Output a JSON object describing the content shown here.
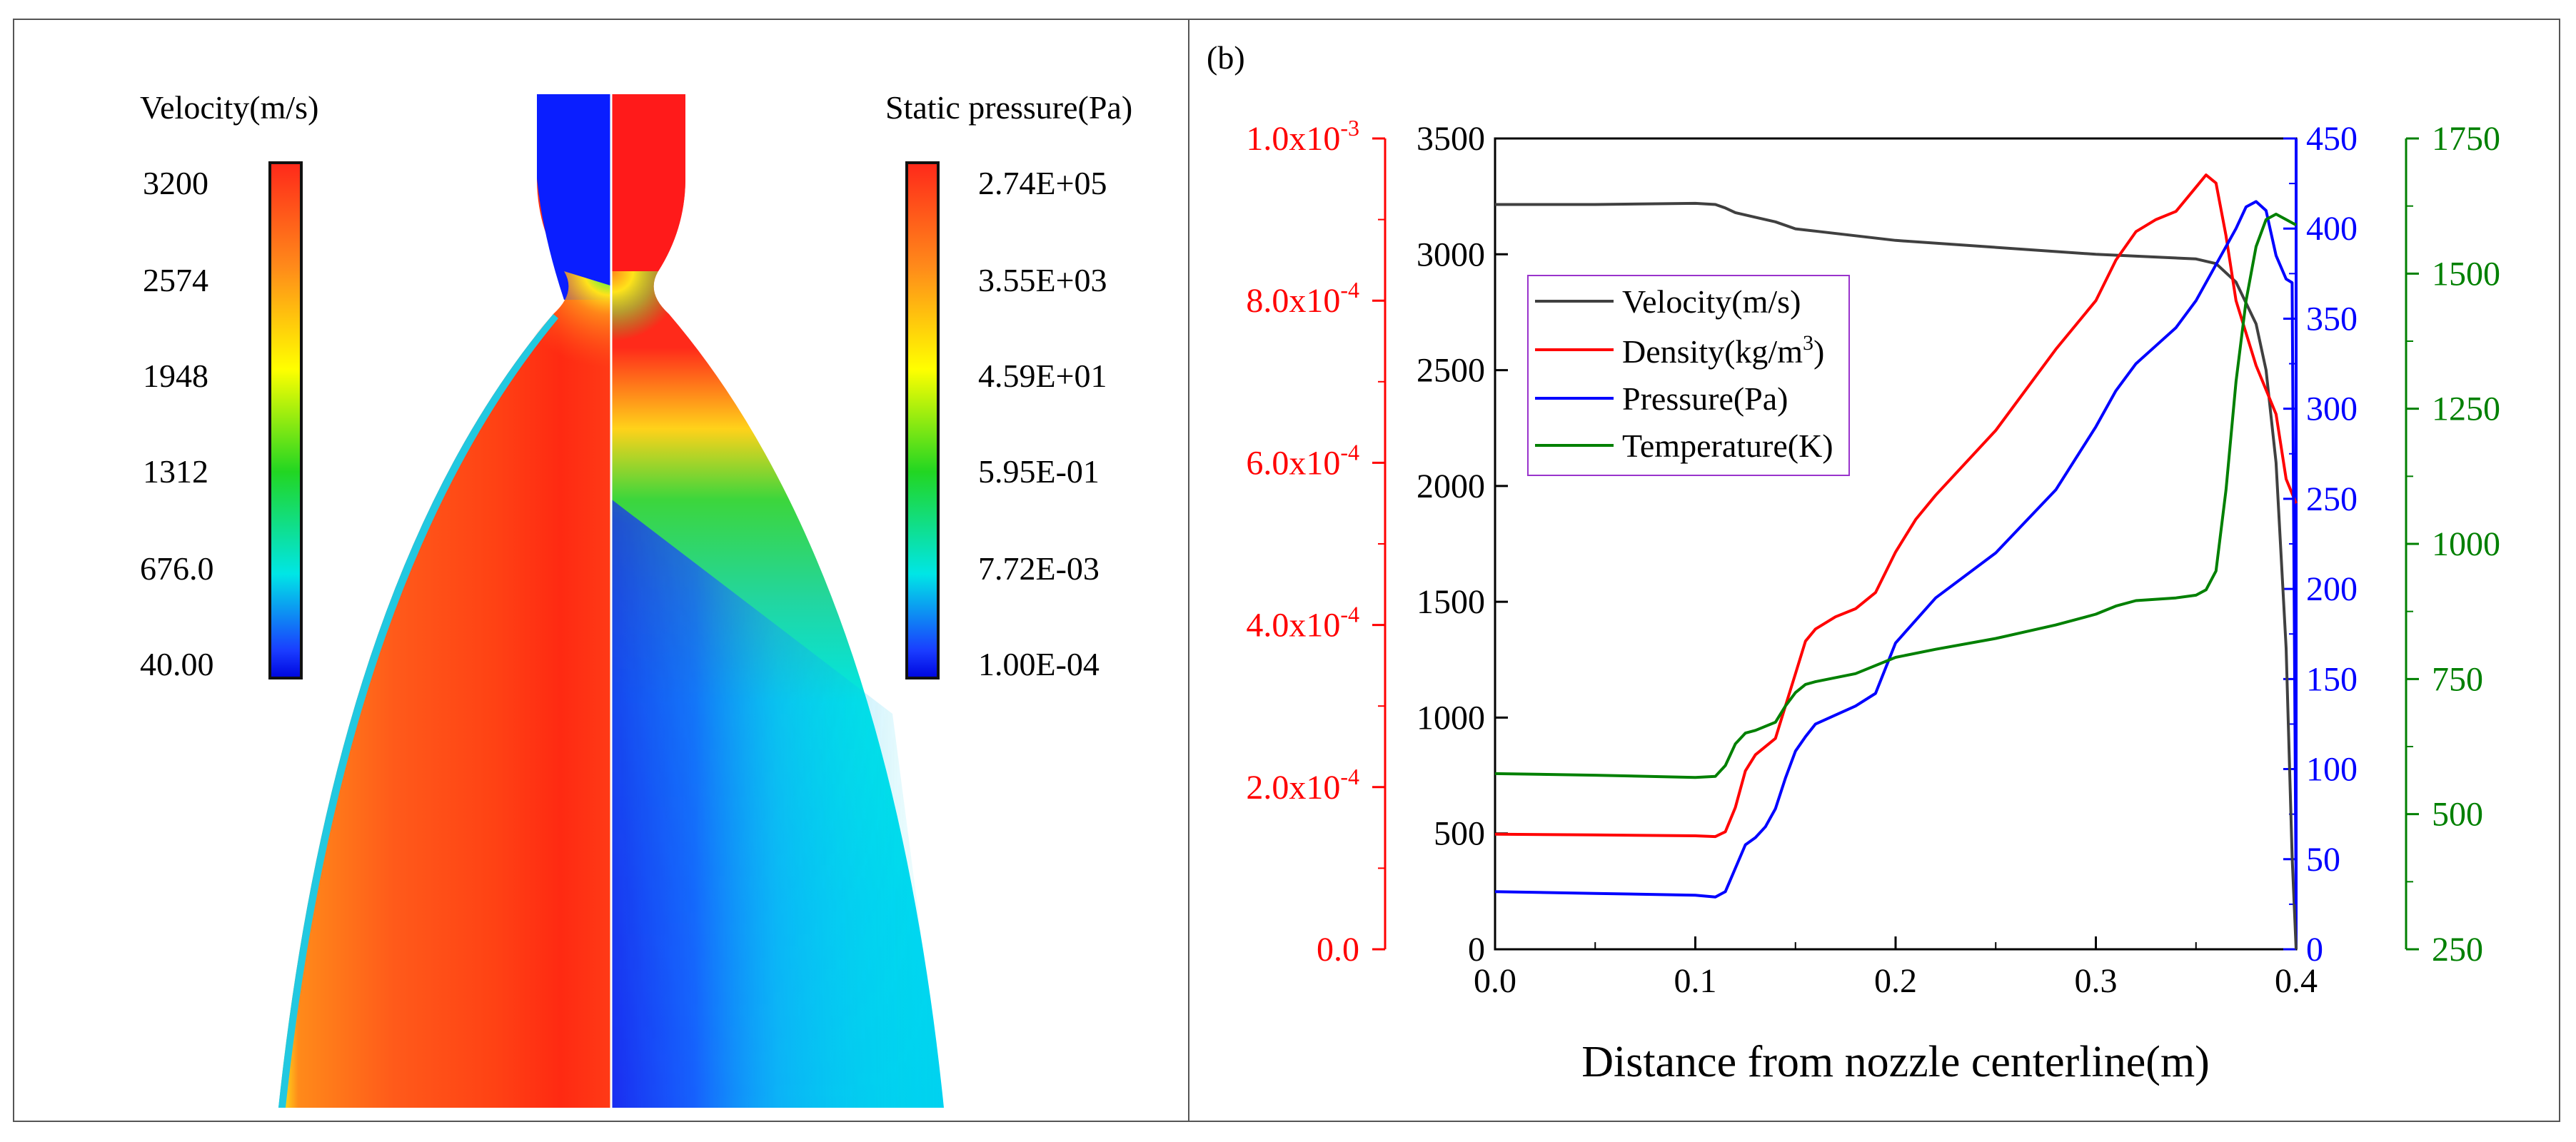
{
  "left_panel": {
    "velocity": {
      "title": "Velocity(m/s)",
      "ticks": [
        "3200",
        "2574",
        "1948",
        "1312",
        "676.0",
        "40.00"
      ]
    },
    "pressure": {
      "title": "Static pressure(Pa)",
      "ticks": [
        "2.74E+05",
        "3.55E+03",
        "4.59E+01",
        "5.95E-01",
        "7.72E-03",
        "1.00E-04"
      ]
    }
  },
  "chart_data": {
    "type": "line",
    "panel_label": "(b)",
    "xlabel": "Distance from nozzle centerline(m)",
    "xlim": [
      0,
      0.4
    ],
    "x_ticks": [
      "0.0",
      "0.1",
      "0.2",
      "0.3",
      "0.4"
    ],
    "axes": {
      "velocity": {
        "ylim": [
          0,
          3500
        ],
        "ticks": [
          "0",
          "500",
          "1000",
          "1500",
          "2000",
          "2500",
          "3000",
          "3500"
        ],
        "color": "#000000"
      },
      "density": {
        "ylim": [
          0,
          0.001
        ],
        "tick_values": [
          0,
          0.0002,
          0.0004,
          0.0006,
          0.0008,
          0.001
        ],
        "tick_mantissas": [
          "0.0",
          "2.0x10",
          "4.0x10",
          "6.0x10",
          "8.0x10",
          "1.0x10"
        ],
        "tick_exponents": [
          "",
          "-4",
          "-4",
          "-4",
          "-4",
          "-3"
        ],
        "color": "#ff0000"
      },
      "pressure": {
        "ylim": [
          0,
          450
        ],
        "ticks": [
          "0",
          "50",
          "100",
          "150",
          "200",
          "250",
          "300",
          "350",
          "400",
          "450"
        ],
        "color": "#0000ff"
      },
      "temperature": {
        "ylim": [
          250,
          1750
        ],
        "ticks": [
          "250",
          "500",
          "750",
          "1000",
          "1250",
          "1500",
          "1750"
        ],
        "color": "#008000"
      }
    },
    "legend": {
      "position": "top-left",
      "entries": [
        "Velocity(m/s)",
        "Density(kg/m",
        "Pressure(Pa)",
        "Temperature(K)"
      ],
      "density_sup": "3",
      "density_close": ")"
    },
    "series": [
      {
        "name": "Velocity(m/s)",
        "axis": "velocity",
        "color": "#404040",
        "x": [
          0,
          0.05,
          0.1,
          0.11,
          0.115,
          0.12,
          0.13,
          0.14,
          0.15,
          0.16,
          0.2,
          0.3,
          0.35,
          0.36,
          0.37,
          0.38,
          0.385,
          0.39,
          0.395,
          0.398,
          0.4
        ],
        "y": [
          3215,
          3215,
          3220,
          3215,
          3200,
          3180,
          3160,
          3140,
          3110,
          3100,
          3060,
          3000,
          2980,
          2960,
          2880,
          2700,
          2500,
          2100,
          1300,
          400,
          0
        ]
      },
      {
        "name": "Density(kg/m3)",
        "axis": "density",
        "color": "#ff0000",
        "x": [
          0,
          0.05,
          0.1,
          0.11,
          0.115,
          0.12,
          0.125,
          0.13,
          0.14,
          0.145,
          0.15,
          0.155,
          0.16,
          0.17,
          0.18,
          0.19,
          0.2,
          0.21,
          0.22,
          0.25,
          0.28,
          0.3,
          0.31,
          0.32,
          0.33,
          0.34,
          0.35,
          0.355,
          0.36,
          0.365,
          0.37,
          0.38,
          0.39,
          0.395,
          0.4
        ],
        "y": [
          0.000142,
          0.000141,
          0.00014,
          0.000139,
          0.000145,
          0.000175,
          0.00022,
          0.00024,
          0.00026,
          0.0003,
          0.00034,
          0.00038,
          0.000395,
          0.00041,
          0.00042,
          0.00044,
          0.00049,
          0.00053,
          0.00056,
          0.00064,
          0.00074,
          0.0008,
          0.00085,
          0.000885,
          0.0009,
          0.00091,
          0.00094,
          0.000955,
          0.000945,
          0.00088,
          0.0008,
          0.00072,
          0.00066,
          0.00058,
          0.00055
        ]
      },
      {
        "name": "Pressure(Pa)",
        "axis": "pressure",
        "color": "#0000ff",
        "x": [
          0,
          0.05,
          0.1,
          0.11,
          0.115,
          0.12,
          0.125,
          0.13,
          0.135,
          0.14,
          0.145,
          0.15,
          0.155,
          0.16,
          0.17,
          0.18,
          0.19,
          0.2,
          0.22,
          0.25,
          0.28,
          0.3,
          0.31,
          0.32,
          0.33,
          0.34,
          0.35,
          0.36,
          0.37,
          0.375,
          0.38,
          0.385,
          0.39,
          0.395,
          0.398,
          0.4
        ],
        "y": [
          32,
          31,
          30,
          29,
          32,
          45,
          58,
          62,
          68,
          78,
          95,
          110,
          118,
          125,
          130,
          135,
          142,
          170,
          195,
          220,
          255,
          290,
          310,
          325,
          335,
          345,
          360,
          380,
          400,
          412,
          415,
          410,
          385,
          372,
          370,
          25
        ]
      },
      {
        "name": "Temperature(K)",
        "axis": "temperature",
        "color": "#008000",
        "x": [
          0,
          0.05,
          0.1,
          0.11,
          0.115,
          0.12,
          0.125,
          0.13,
          0.14,
          0.145,
          0.15,
          0.155,
          0.16,
          0.18,
          0.2,
          0.22,
          0.25,
          0.28,
          0.3,
          0.31,
          0.32,
          0.34,
          0.35,
          0.355,
          0.36,
          0.365,
          0.37,
          0.375,
          0.38,
          0.385,
          0.39,
          0.395,
          0.4
        ],
        "y": [
          575,
          572,
          568,
          570,
          590,
          630,
          650,
          655,
          670,
          700,
          725,
          740,
          745,
          760,
          790,
          805,
          825,
          850,
          870,
          885,
          895,
          900,
          905,
          915,
          950,
          1100,
          1300,
          1450,
          1550,
          1600,
          1610,
          1600,
          1590
        ]
      }
    ]
  }
}
